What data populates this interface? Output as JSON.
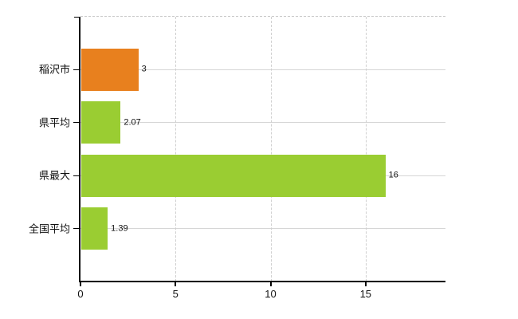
{
  "background_color": "#ffffff",
  "chart_data": {
    "type": "bar",
    "orientation": "horizontal",
    "title": "",
    "categories": [
      "稲沢市",
      "県平均",
      "県最大",
      "全国平均"
    ],
    "values": [
      3,
      2.07,
      16,
      1.39
    ],
    "value_labels": [
      "3",
      "2.07",
      "16",
      "1.39"
    ],
    "bar_colors": [
      "#e8801e",
      "#9acd32",
      "#9acd32",
      "#9acd32"
    ],
    "x_ticks": [
      0,
      5,
      10,
      15
    ],
    "x_tick_labels": [
      "0",
      "5",
      "10",
      "15"
    ],
    "xlim": [
      0,
      19.2
    ],
    "grid": {
      "vertical_style": "dashed",
      "horizontal_style": "solid",
      "gridline_color": "#d6d6d6",
      "top_border_style": "dashed"
    },
    "axis_color": "#000000",
    "text_color": "#111111",
    "legend": null
  }
}
